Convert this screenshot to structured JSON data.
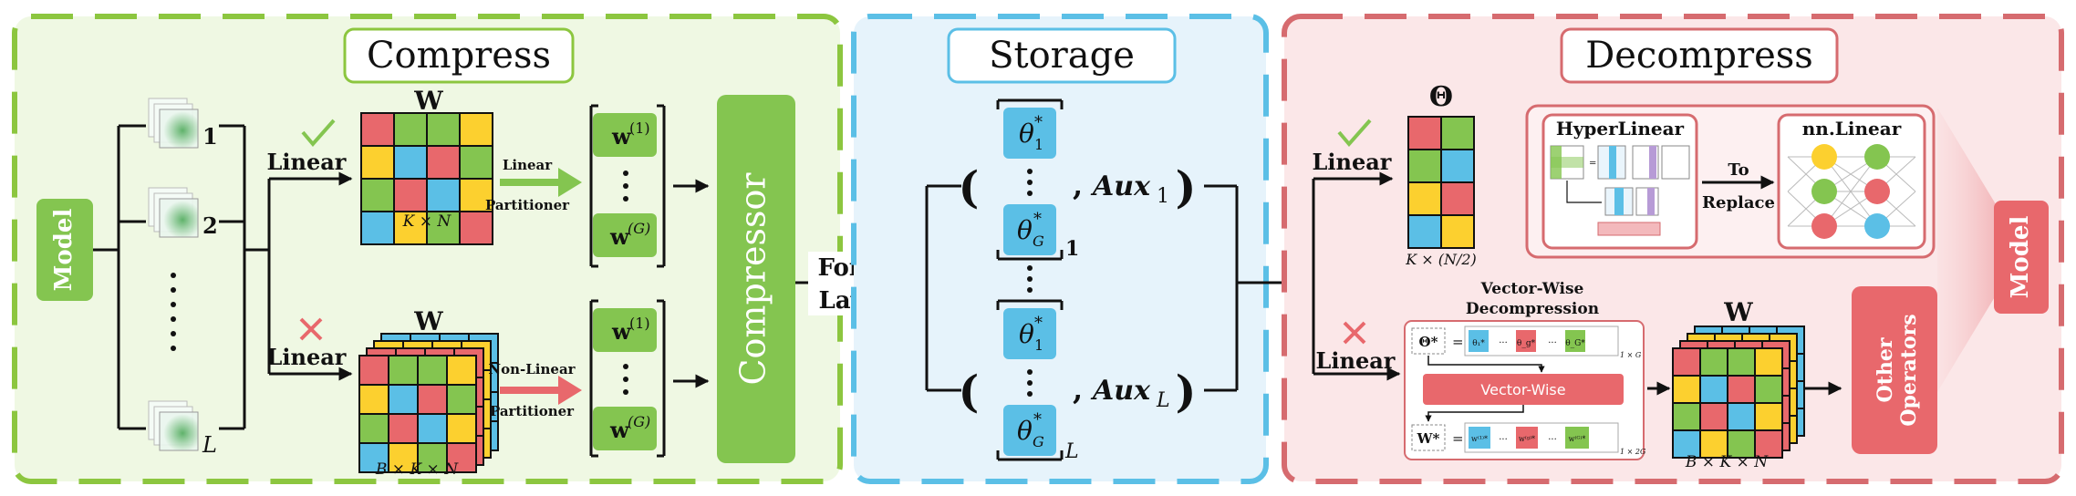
{
  "colors": {
    "compress_border": "#8cc63f",
    "compress_bg": "#eff8e3",
    "storage_border": "#5bbfe6",
    "storage_bg": "#e6f3fb",
    "decompress_border": "#d66b6f",
    "decompress_bg": "#fbe7e8",
    "green": "#84c550",
    "blue": "#5bbfe6",
    "red": "#e8686c",
    "yellow": "#fcd02f"
  },
  "compress": {
    "title": "Compress",
    "model_label": "Model",
    "layer_labels": [
      "1",
      "2",
      "L"
    ],
    "linear_label": "Linear",
    "nonlinear_label": "Linear",
    "w_label": "W",
    "w_dims": "K × N",
    "w3_label": "W",
    "w3_dims": "B × K × N",
    "linear_partitioner_line1": "Linear",
    "linear_partitioner_line2": "Partitioner",
    "nonlinear_partitioner_line1": "Non-Linear",
    "nonlinear_partitioner_line2": "Partitioner",
    "vec_first": "w",
    "vec_first_sup": "(1)",
    "vec_last": "w",
    "vec_last_sup": "(G)",
    "compressor_label": "Compressor"
  },
  "middle": {
    "line1": "For All",
    "line2": "Layers"
  },
  "storage": {
    "title": "Storage",
    "theta": "θ",
    "sub_first": "1",
    "sub_last": "G",
    "star": "*",
    "aux_label": "Aux",
    "aux_sub_first": "1",
    "aux_sub_last": "L",
    "group_sub_first": "1",
    "group_sub_last": "L"
  },
  "decompress": {
    "title": "Decompress",
    "theta_symbol": "Θ",
    "linear_label": "Linear",
    "nonlinear_label": "Linear",
    "theta_dims": "K × (N/2)",
    "hyperlinear_label": "HyperLinear",
    "to_replace_line1": "To",
    "to_replace_line2": "Replace",
    "nnlinear_label": "nn.Linear",
    "vw_title_line1": "Vector-Wise",
    "vw_title_line2": "Decompression",
    "vw_theta_lhs": "Θ*",
    "vw_theta_items": [
      "θ₁*",
      "···",
      "θ_g*",
      "···",
      "θ_G*"
    ],
    "vw_theta_dims": "1 × G",
    "vw_box_label": "Vector-Wise",
    "vw_w_lhs": "W*",
    "vw_w_items": [
      "w⁽¹⁾*",
      "···",
      "w⁽ᵍ⁾*",
      "···",
      "w⁽ᴳ⁾*"
    ],
    "vw_w_dims": "1 × 2G",
    "w3_label": "W",
    "w3_dims": "B × K × N",
    "other_ops_line1": "Other",
    "other_ops_line2": "Operators",
    "model_label": "Model"
  }
}
